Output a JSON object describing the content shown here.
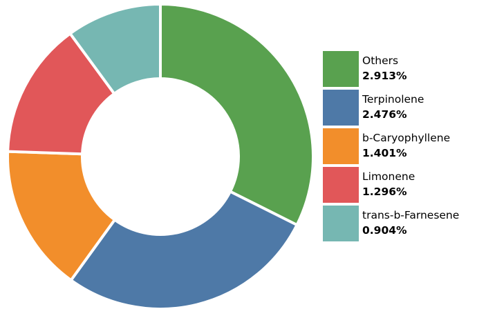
{
  "chart_data": {
    "type": "pie",
    "variant": "donut",
    "categories": [
      "Others",
      "Terpinolene",
      "b-Caryophyllene",
      "Limonene",
      "trans-b-Farnesene"
    ],
    "values": [
      2.913,
      2.476,
      1.401,
      1.296,
      0.904
    ],
    "value_labels": [
      "2.913%",
      "2.476%",
      "1.401%",
      "1.296%",
      "0.904%"
    ],
    "colors": [
      "#59a14f",
      "#4e79a7",
      "#f28e2b",
      "#e15759",
      "#76b7b2"
    ],
    "legend_position": "right"
  }
}
